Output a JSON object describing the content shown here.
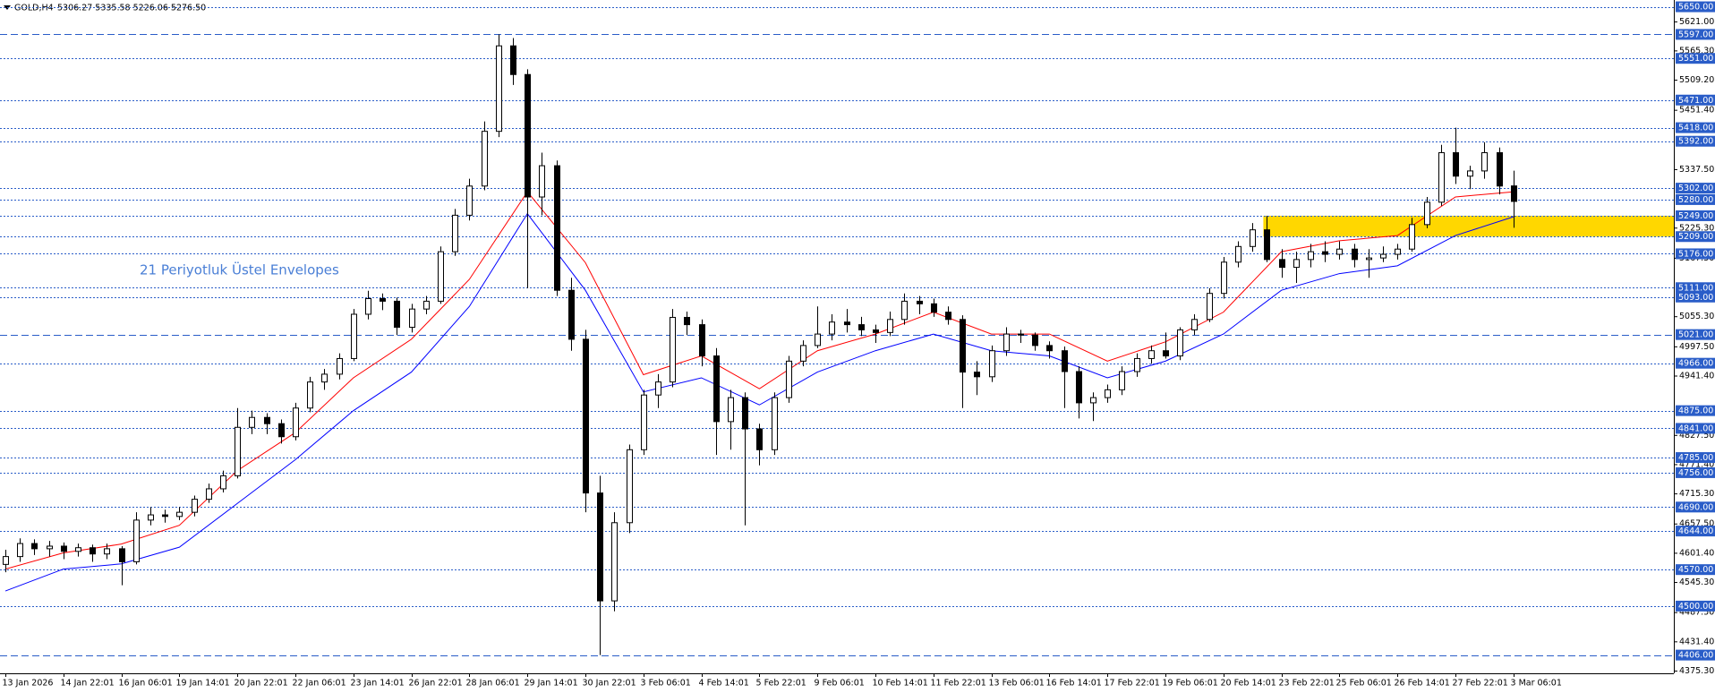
{
  "chart_data": {
    "type": "candlestick",
    "title": "GOLD,H4",
    "subtitle": "5306.27 5335.58 5226.06 5276.50",
    "annotation": "21 Periyotluk Üstel Envelopes",
    "categories": [
      "13 Jan 2026",
      null,
      null,
      null,
      "14 Jan 22:01",
      null,
      null,
      null,
      "16 Jan 06:01",
      null,
      null,
      null,
      "19 Jan 14:01",
      null,
      null,
      null,
      "20 Jan 22:01",
      null,
      null,
      null,
      "22 Jan 06:01",
      null,
      null,
      null,
      "23 Jan 14:01",
      null,
      null,
      null,
      "26 Jan 22:01",
      null,
      null,
      null,
      "28 Jan 06:01",
      null,
      null,
      null,
      "29 Jan 14:01",
      null,
      null,
      null,
      "30 Jan 22:01",
      null,
      null,
      null,
      "3 Feb 06:01",
      null,
      null,
      null,
      "4 Feb 14:01",
      null,
      null,
      null,
      "5 Feb 22:01",
      null,
      null,
      null,
      "9 Feb 06:01",
      null,
      null,
      null,
      "10 Feb 14:01",
      null,
      null,
      null,
      "11 Feb 22:01",
      null,
      null,
      null,
      "13 Feb 06:01",
      null,
      null,
      null,
      "16 Feb 14:01",
      null,
      null,
      null,
      "17 Feb 22:01",
      null,
      null,
      null,
      "19 Feb 06:01",
      null,
      null,
      null,
      "20 Feb 14:01",
      null,
      null,
      null,
      "23 Feb 22:01",
      null,
      null,
      null,
      "25 Feb 06:01",
      null,
      null,
      null,
      "26 Feb 14:01",
      null,
      null,
      null,
      "27 Feb 22:01",
      null,
      null,
      null,
      "3 Mar 06:01"
    ],
    "open": [
      4580,
      4595,
      4620,
      4610,
      4615,
      4605,
      4612,
      4600,
      4610,
      4585,
      4665,
      4675,
      4672,
      4680,
      4705,
      4725,
      4750,
      4843,
      4862,
      4850,
      4825,
      4880,
      4930,
      4945,
      4975,
      5060,
      5090,
      5085,
      5035,
      5070,
      5085,
      5180,
      5250,
      5306,
      5411,
      5575,
      5520,
      5285,
      5345,
      5106,
      5012,
      4717,
      4510,
      4660,
      4800,
      4905,
      4930,
      5054,
      5040,
      4980,
      4854,
      4900,
      4840,
      4800,
      4900,
      4970,
      5000,
      5022,
      5045,
      5040,
      5030,
      5025,
      5050,
      5085,
      5080,
      5064,
      5050,
      4949,
      4940,
      4990,
      5022,
      5020,
      5000,
      4990,
      4950,
      4890,
      4900,
      4915,
      4950,
      4975,
      4990,
      4980,
      5030,
      5050,
      5100,
      5160,
      5190,
      5222,
      5165,
      5150,
      5165,
      5180,
      5175,
      5185,
      5165,
      5168,
      5175,
      5185,
      5232,
      5275,
      5370,
      5325,
      5335,
      5370,
      5306.27
    ],
    "high": [
      4608,
      4630,
      4628,
      4625,
      4622,
      4620,
      4618,
      4620,
      4615,
      4680,
      4690,
      4685,
      4690,
      4712,
      4735,
      4760,
      4880,
      4875,
      4870,
      4858,
      4890,
      4940,
      4955,
      4985,
      5070,
      5105,
      5100,
      5092,
      5080,
      5095,
      5190,
      5262,
      5320,
      5430,
      5597,
      5590,
      5530,
      5370,
      5355,
      5130,
      5030,
      4750,
      4680,
      4810,
      4915,
      4945,
      5070,
      5065,
      5050,
      4995,
      4915,
      4910,
      4850,
      4910,
      4980,
      5010,
      5075,
      5060,
      5070,
      5055,
      5040,
      5065,
      5100,
      5095,
      5090,
      5075,
      5058,
      4970,
      5000,
      5035,
      5030,
      5025,
      5008,
      4998,
      4960,
      4910,
      4925,
      4960,
      4985,
      5000,
      5025,
      5035,
      5060,
      5110,
      5170,
      5200,
      5235,
      5249,
      5185,
      5180,
      5195,
      5200,
      5200,
      5195,
      5185,
      5190,
      5195,
      5245,
      5285,
      5385,
      5418,
      5345,
      5390,
      5380,
      5335.58
    ],
    "low": [
      4565,
      4585,
      4598,
      4595,
      4590,
      4595,
      4585,
      4590,
      4540,
      4580,
      4655,
      4660,
      4665,
      4672,
      4698,
      4718,
      4745,
      4830,
      4830,
      4812,
      4818,
      4872,
      4915,
      4935,
      4970,
      5050,
      5068,
      5020,
      5025,
      5060,
      5080,
      5172,
      5240,
      5298,
      5400,
      5500,
      5110,
      5250,
      5095,
      4990,
      4680,
      4406,
      4490,
      4640,
      4790,
      4880,
      4920,
      5020,
      4960,
      4790,
      4800,
      4655,
      4770,
      4790,
      4890,
      4960,
      4995,
      5010,
      5025,
      5018,
      5005,
      5018,
      5040,
      5060,
      5055,
      5040,
      4880,
      4905,
      4930,
      4980,
      5005,
      4990,
      4975,
      4880,
      4860,
      4855,
      4890,
      4905,
      4940,
      4965,
      4975,
      4972,
      5020,
      5045,
      5090,
      5150,
      5180,
      5160,
      5130,
      5120,
      5150,
      5160,
      5165,
      5150,
      5130,
      5160,
      5165,
      5180,
      5225,
      5268,
      5310,
      5300,
      5320,
      5290,
      5226.06
    ],
    "close": [
      4595,
      4620,
      4610,
      4615,
      4605,
      4612,
      4600,
      4610,
      4585,
      4665,
      4675,
      4672,
      4680,
      4705,
      4725,
      4750,
      4843,
      4862,
      4850,
      4825,
      4880,
      4930,
      4945,
      4975,
      5060,
      5090,
      5085,
      5035,
      5070,
      5085,
      5180,
      5250,
      5306,
      5411,
      5575,
      5520,
      5285,
      5345,
      5106,
      5012,
      4717,
      4510,
      4660,
      4800,
      4905,
      4930,
      5054,
      5040,
      4980,
      4854,
      4900,
      4840,
      4800,
      4900,
      4970,
      5000,
      5022,
      5045,
      5040,
      5030,
      5025,
      5050,
      5085,
      5080,
      5064,
      5050,
      4949,
      4940,
      4990,
      5022,
      5020,
      5000,
      4990,
      4950,
      4890,
      4900,
      4915,
      4950,
      4975,
      4990,
      4980,
      5030,
      5050,
      5100,
      5160,
      5190,
      5222,
      5165,
      5150,
      5165,
      5180,
      5175,
      5185,
      5165,
      5168,
      5175,
      5185,
      5232,
      5275,
      5370,
      5325,
      5335,
      5370,
      5306,
      5276.5
    ],
    "up_color": "#ffffff",
    "down_color": "#000000",
    "envelopes": {
      "x": [
        0,
        4,
        8,
        12,
        16,
        20,
        24,
        28,
        32,
        36,
        40,
        44,
        48,
        52,
        56,
        60,
        64,
        68,
        72,
        76,
        80,
        84,
        88,
        92,
        96,
        100,
        104
      ],
      "series": [
        {
          "color": "#ff0000",
          "values": [
            4571,
            4602,
            4619,
            4655,
            4760,
            4833,
            4938,
            5012,
            5127,
            5295,
            5159,
            4944,
            4980,
            4917,
            4990,
            5022,
            5064,
            5022,
            5022,
            4970,
            5007,
            5064,
            5180,
            5201,
            5211,
            5285,
            5295
          ]
        },
        {
          "color": "#0000ff",
          "values": [
            4529,
            4571,
            4581,
            4613,
            4697,
            4781,
            4875,
            4949,
            5075,
            5253,
            5106,
            4911,
            4938,
            4886,
            4949,
            4990,
            5022,
            4990,
            4980,
            4938,
            4970,
            5022,
            5106,
            5138,
            5153,
            5211,
            5247
          ]
        }
      ]
    },
    "zone": {
      "from": 5209,
      "to": 5249,
      "start": 87,
      "color": "#ffd700"
    },
    "ylim": [
      4371,
      5663
    ],
    "yticks": [
      {
        "value": 5621,
        "label": "5621.00"
      },
      {
        "value": 5565.3,
        "label": "5565.30"
      },
      {
        "value": 5509.2,
        "label": "5509.20"
      },
      {
        "value": 5451.4,
        "label": "5451.40"
      },
      {
        "value": 5337.5,
        "label": "5337.50"
      },
      {
        "value": 5225.3,
        "label": "5225.30"
      },
      {
        "value": 5167.5,
        "label": "5167.50"
      },
      {
        "value": 5055.3,
        "label": "5055.30"
      },
      {
        "value": 4997.5,
        "label": "4997.50"
      },
      {
        "value": 4941.4,
        "label": "4941.40"
      },
      {
        "value": 4827.5,
        "label": "4827.50"
      },
      {
        "value": 4771.4,
        "label": "4771.40"
      },
      {
        "value": 4715.3,
        "label": "4715.30"
      },
      {
        "value": 4657.5,
        "label": "4657.50"
      },
      {
        "value": 4601.4,
        "label": "4601.40"
      },
      {
        "value": 4545.3,
        "label": "4545.30"
      },
      {
        "value": 4487.5,
        "label": "4487.50"
      },
      {
        "value": 4431.4,
        "label": "4431.40"
      },
      {
        "value": 4375.3,
        "label": "4375.30"
      }
    ],
    "level_color": "#2a5dc8",
    "levels": [
      {
        "value": 5650,
        "label": "5650.00",
        "style": "dotted"
      },
      {
        "value": 5597,
        "label": "5597.00",
        "style": "dashed"
      },
      {
        "value": 5551,
        "label": "5551.00",
        "style": "dotted"
      },
      {
        "value": 5471,
        "label": "5471.00",
        "style": "dotted"
      },
      {
        "value": 5418,
        "label": "5418.00",
        "style": "dotted"
      },
      {
        "value": 5392,
        "label": "5392.00",
        "style": "dotted"
      },
      {
        "value": 5302,
        "label": "5302.00",
        "style": "dotted"
      },
      {
        "value": 5280,
        "label": "5280.00",
        "style": "dotted"
      },
      {
        "value": 5249,
        "label": "5249.00",
        "style": "dotted"
      },
      {
        "value": 5209,
        "label": "5209.00",
        "style": "dotted"
      },
      {
        "value": 5176,
        "label": "5176.00",
        "style": "dotted"
      },
      {
        "value": 5111,
        "label": "5111.00",
        "style": "dotted"
      },
      {
        "value": 5093,
        "label": "5093.00",
        "style": "dotted"
      },
      {
        "value": 5021,
        "label": "5021.00",
        "style": "dashed"
      },
      {
        "value": 4966,
        "label": "4966.00",
        "style": "dotted"
      },
      {
        "value": 4875,
        "label": "4875.00",
        "style": "dotted"
      },
      {
        "value": 4841,
        "label": "4841.00",
        "style": "dotted"
      },
      {
        "value": 4785,
        "label": "4785.00",
        "style": "dotted"
      },
      {
        "value": 4756,
        "label": "4756.00",
        "style": "dotted"
      },
      {
        "value": 4690,
        "label": "4690.00",
        "style": "dotted"
      },
      {
        "value": 4644,
        "label": "4644.00",
        "style": "dotted"
      },
      {
        "value": 4570,
        "label": "4570.00",
        "style": "dotted"
      },
      {
        "value": 4500,
        "label": "4500.00",
        "style": "dotted"
      },
      {
        "value": 4406,
        "label": "4406.00",
        "style": "dashed"
      }
    ]
  }
}
